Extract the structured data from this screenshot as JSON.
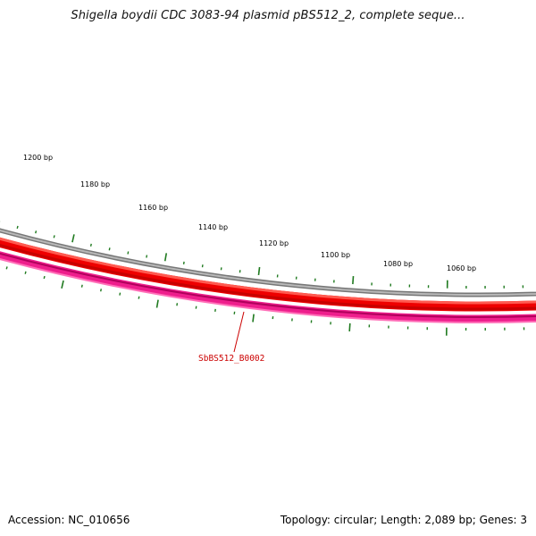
{
  "title": "Shigella boydii CDC 3083-94 plasmid pBS512_2, complete seque...",
  "map": {
    "tick_labels": [
      "1200 bp",
      "1180 bp",
      "1160 bp",
      "1140 bp",
      "1120 bp",
      "1100 bp",
      "1080 bp",
      "1060 bp"
    ],
    "gene_label": "SbBS512_B0002",
    "colors": {
      "backbone": "#888888",
      "forward_gene": "#ee0000",
      "reverse_gene": "#ee1e8c",
      "ticks": "#1f7a1f",
      "gene_label": "#cc0000"
    }
  },
  "footer": {
    "accession": "Accession: NC_010656",
    "summary": "Topology: circular; Length: 2,089 bp; Genes: 3"
  }
}
